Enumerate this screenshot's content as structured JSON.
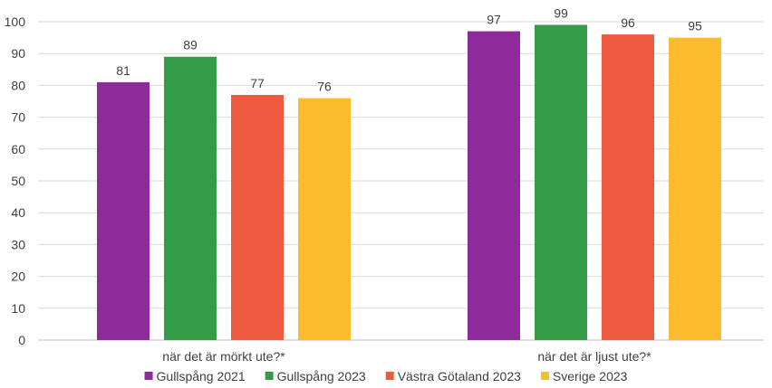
{
  "chart_data": {
    "type": "bar",
    "categories": [
      "när det är mörkt ute?*",
      "när det är ljust ute?*"
    ],
    "series": [
      {
        "name": "Gullspång 2021",
        "color": "#8e2a9c",
        "values": [
          81,
          97
        ]
      },
      {
        "name": "Gullspång 2023",
        "color": "#339c46",
        "values": [
          89,
          99
        ]
      },
      {
        "name": "Västra Götaland 2023",
        "color": "#ee5a3d",
        "values": [
          77,
          96
        ]
      },
      {
        "name": "Sverige 2023",
        "color": "#fbbb2d",
        "values": [
          76,
          95
        ]
      }
    ],
    "ylim": [
      0,
      100
    ],
    "yticks": [
      0,
      10,
      20,
      30,
      40,
      50,
      60,
      70,
      80,
      90,
      100
    ],
    "grid": true,
    "legend_position": "bottom"
  }
}
